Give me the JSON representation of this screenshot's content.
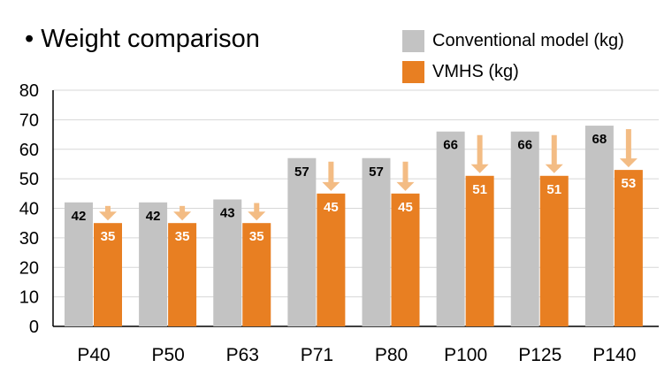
{
  "chart_data": {
    "type": "bar",
    "title": "• Weight comparison",
    "categories": [
      "P40",
      "P50",
      "P63",
      "P71",
      "P80",
      "P100",
      "P125",
      "P140"
    ],
    "series": [
      {
        "name": "Conventional model (kg)",
        "values": [
          42,
          42,
          43,
          57,
          57,
          66,
          66,
          68
        ],
        "color": "#c3c3c3"
      },
      {
        "name": "VMHS (kg)",
        "values": [
          35,
          35,
          35,
          45,
          45,
          51,
          51,
          53
        ],
        "color": "#e87f22"
      }
    ],
    "ylim": [
      0,
      80
    ],
    "yticks": [
      "0",
      "10",
      "20",
      "30",
      "40",
      "50",
      "60",
      "70",
      "80"
    ],
    "grid": true,
    "legend_position": "top-right",
    "reduction_arrow_color": "#f3bc84"
  }
}
